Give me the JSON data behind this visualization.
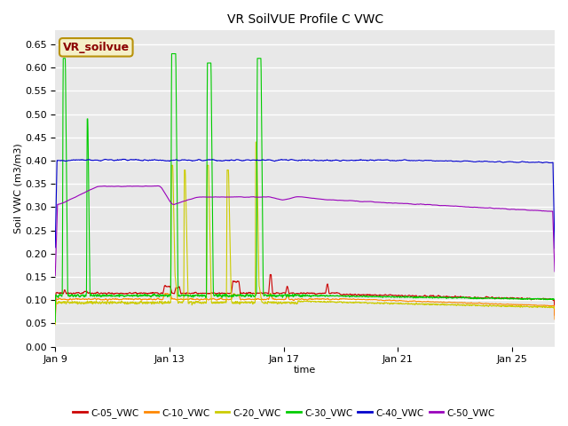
{
  "title": "VR SoilVUE Profile C VWC",
  "xlabel": "time",
  "ylabel": "Soil VWC (m3/m3)",
  "ylim": [
    0.0,
    0.68
  ],
  "yticks": [
    0.0,
    0.05,
    0.1,
    0.15,
    0.2,
    0.25,
    0.3,
    0.35,
    0.4,
    0.45,
    0.5,
    0.55,
    0.6,
    0.65
  ],
  "plot_bg_color": "#e8e8e8",
  "grid_color": "#ffffff",
  "watermark_text": "VR_soilvue",
  "watermark_bg": "#f5f0c8",
  "watermark_border": "#b8920a",
  "watermark_text_color": "#8b0000",
  "series_names": [
    "C-05_VWC",
    "C-10_VWC",
    "C-20_VWC",
    "C-30_VWC",
    "C-40_VWC",
    "C-50_VWC"
  ],
  "series_colors": [
    "#cc0000",
    "#ff8800",
    "#cccc00",
    "#00cc00",
    "#0000cc",
    "#9900bb"
  ],
  "xtick_labels": [
    "Jan 9",
    "Jan 13",
    "Jan 17",
    "Jan 21",
    "Jan 25"
  ],
  "xtick_positions": [
    0,
    4,
    8,
    12,
    16
  ],
  "xlim": [
    0,
    17.5
  ]
}
